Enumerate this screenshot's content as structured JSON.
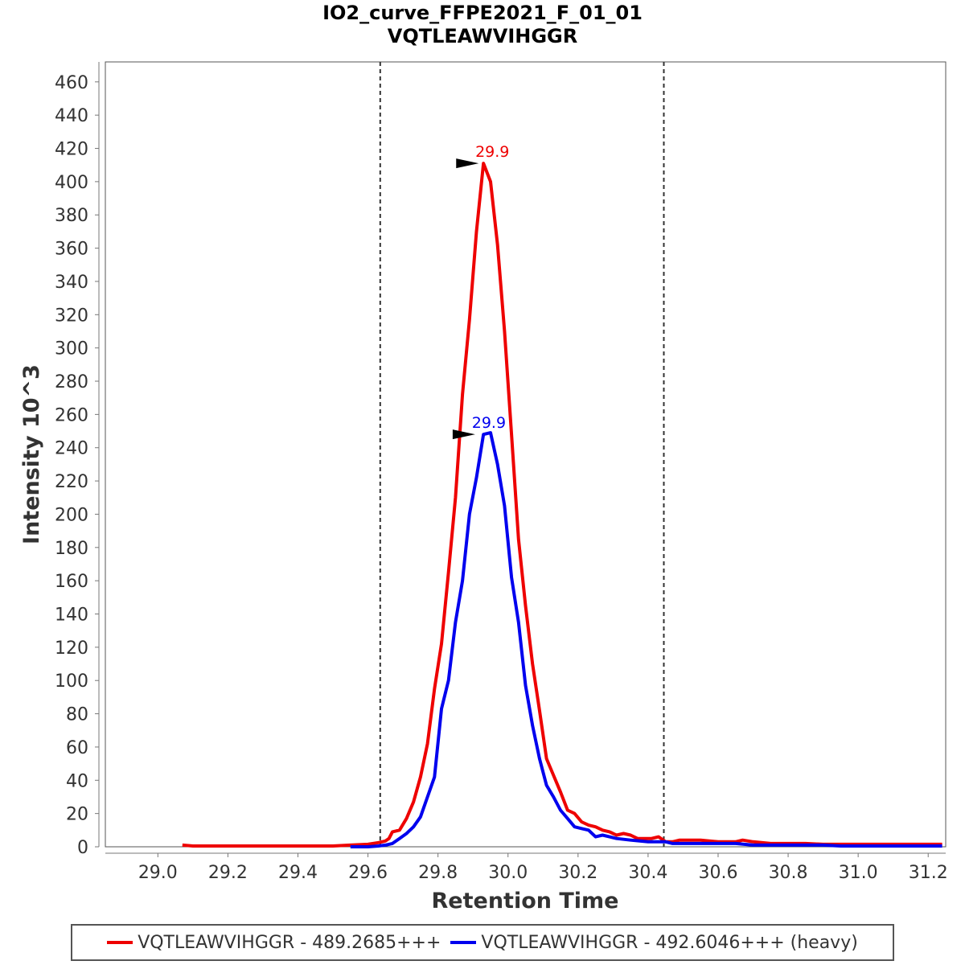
{
  "chart_data": {
    "type": "line",
    "title": "IO2_curve_FFPE2021_F_01_01",
    "subtitle": "VQTLEAWVIHGGR",
    "xlabel": "Retention Time",
    "ylabel": "Intensity 10^3",
    "xlim": [
      28.85,
      31.25
    ],
    "ylim": [
      0,
      472
    ],
    "xticks": [
      "29.0",
      "29.2",
      "29.4",
      "29.6",
      "29.8",
      "30.0",
      "30.2",
      "30.4",
      "30.6",
      "30.8",
      "31.0",
      "31.2"
    ],
    "yticks": [
      "0",
      "20",
      "40",
      "60",
      "80",
      "100",
      "120",
      "140",
      "160",
      "180",
      "200",
      "220",
      "240",
      "260",
      "280",
      "300",
      "320",
      "340",
      "360",
      "380",
      "400",
      "420",
      "440",
      "460"
    ],
    "integration_bounds": [
      29.635,
      30.445
    ],
    "legend_position": "bottom",
    "grid": false,
    "series": [
      {
        "name": "VQTLEAWVIHGGR - 489.2685+++",
        "color": "#ee0000",
        "peak": {
          "x": 29.93,
          "y": 411,
          "label": "29.9"
        },
        "x": [
          29.07,
          29.1,
          29.15,
          29.2,
          29.25,
          29.3,
          29.35,
          29.4,
          29.45,
          29.5,
          29.55,
          29.6,
          29.63,
          29.65,
          29.66,
          29.67,
          29.69,
          29.71,
          29.73,
          29.75,
          29.77,
          29.79,
          29.81,
          29.83,
          29.85,
          29.87,
          29.89,
          29.91,
          29.93,
          29.95,
          29.97,
          29.99,
          30.01,
          30.03,
          30.05,
          30.07,
          30.09,
          30.11,
          30.13,
          30.15,
          30.17,
          30.19,
          30.21,
          30.23,
          30.25,
          30.27,
          30.29,
          30.31,
          30.33,
          30.35,
          30.37,
          30.39,
          30.41,
          30.43,
          30.45,
          30.47,
          30.49,
          30.51,
          30.55,
          30.6,
          30.65,
          30.67,
          30.7,
          30.75,
          30.8,
          30.85,
          30.9,
          30.95,
          31.0,
          31.05,
          31.1,
          31.15,
          31.2,
          31.24
        ],
        "y": [
          1,
          0.5,
          0.5,
          0.5,
          0.5,
          0.5,
          0.5,
          0.5,
          0.5,
          0.5,
          1,
          1.5,
          2.5,
          3.5,
          5,
          9,
          10,
          17,
          27,
          42,
          62,
          95,
          122,
          165,
          210,
          272,
          317,
          370,
          411,
          400,
          362,
          310,
          248,
          185,
          145,
          110,
          82,
          53,
          43,
          33,
          22,
          20,
          15,
          13,
          12,
          10,
          9,
          7,
          8,
          7,
          5,
          5,
          5,
          6,
          3,
          3,
          4,
          4,
          4,
          3,
          3,
          4,
          3,
          2,
          2,
          2,
          1.5,
          1.5,
          1.5,
          1.5,
          1.5,
          1.5,
          1.5,
          1.5
        ]
      },
      {
        "name": "VQTLEAWVIHGGR - 492.6046+++ (heavy)",
        "color": "#0000ee",
        "peak": {
          "x": 29.92,
          "y": 248,
          "label": "29.9"
        },
        "x": [
          29.55,
          29.6,
          29.63,
          29.65,
          29.67,
          29.69,
          29.71,
          29.73,
          29.75,
          29.77,
          29.79,
          29.81,
          29.83,
          29.85,
          29.87,
          29.89,
          29.91,
          29.93,
          29.95,
          29.97,
          29.99,
          30.01,
          30.03,
          30.05,
          30.07,
          30.09,
          30.11,
          30.13,
          30.15,
          30.17,
          30.19,
          30.21,
          30.23,
          30.25,
          30.27,
          30.29,
          30.31,
          30.35,
          30.4,
          30.45,
          30.47,
          30.5,
          30.55,
          30.6,
          30.65,
          30.7,
          30.75,
          30.8,
          30.85,
          30.9,
          30.95,
          31.0,
          31.1,
          31.2,
          31.24
        ],
        "y": [
          0,
          0,
          0.5,
          1,
          2,
          5,
          8,
          12,
          18,
          30,
          42,
          83,
          100,
          135,
          160,
          200,
          222,
          248,
          249,
          230,
          205,
          162,
          135,
          97,
          73,
          53,
          37,
          30,
          22,
          17,
          12,
          11,
          10,
          6,
          7,
          6,
          5,
          4,
          3,
          3,
          2,
          2,
          2,
          2,
          2,
          1,
          1,
          1,
          1,
          1,
          0.5,
          0.5,
          0.5,
          0.5,
          0.5
        ]
      }
    ]
  }
}
